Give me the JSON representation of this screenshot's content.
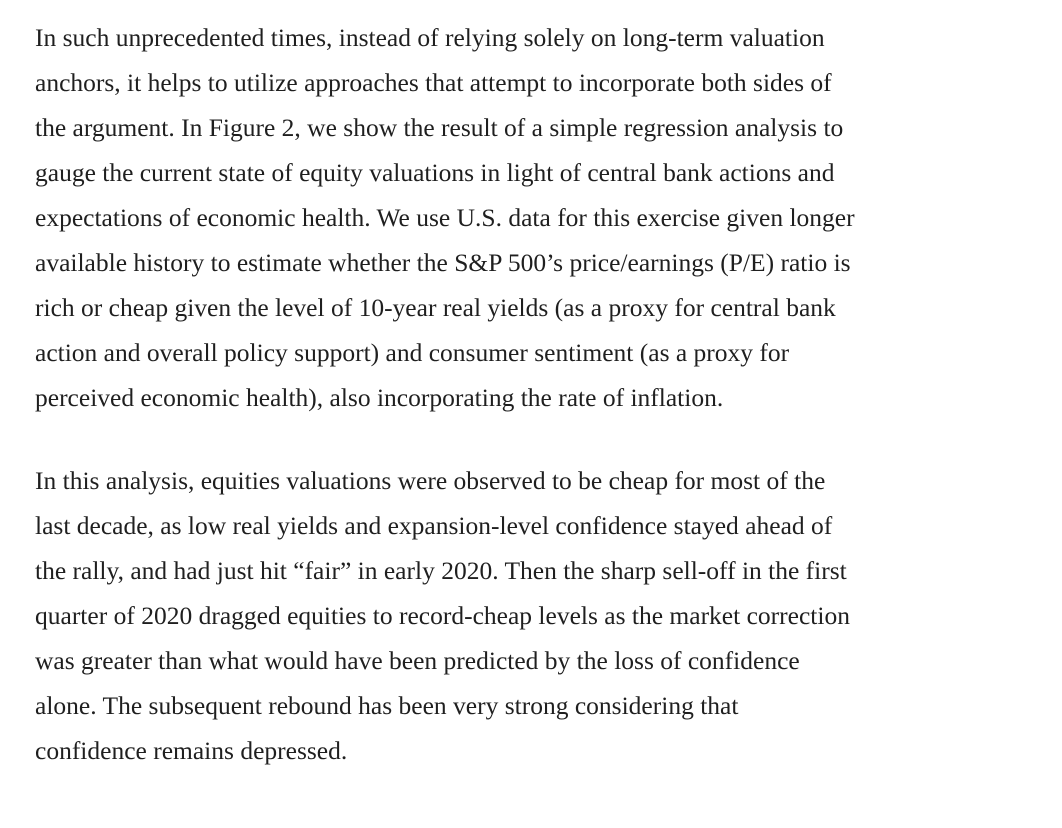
{
  "article": {
    "paragraphs": [
      {
        "lines": [
          "In such unprecedented times, instead of relying solely on long-term valuation",
          "anchors, it helps to utilize approaches that attempt to incorporate both sides of",
          "the argument. In Figure 2, we show the result of a simple regression analysis to",
          "gauge the current state of equity valuations in light of central bank actions and",
          "expectations of economic health. We use U.S. data for this exercise given longer",
          "available history to estimate whether the S&P 500’s price/earnings (P/E) ratio is",
          "rich or cheap given the level of 10-year real yields (as a proxy for central bank",
          "action and overall policy support) and consumer sentiment (as a proxy for",
          "perceived economic health), also incorporating the rate of inflation."
        ]
      },
      {
        "lines": [
          "In this analysis, equities valuations were observed to be cheap for most of the",
          "last decade, as low real yields and expansion-level confidence stayed ahead of",
          "the rally, and had just hit “fair” in early 2020. Then the sharp sell-off in the first",
          "quarter of 2020 dragged equities to record-cheap levels as the market correction",
          "was greater than what would have been predicted by the loss of confidence",
          "alone. The subsequent rebound has been very strong considering that",
          "confidence remains depressed."
        ]
      }
    ]
  }
}
